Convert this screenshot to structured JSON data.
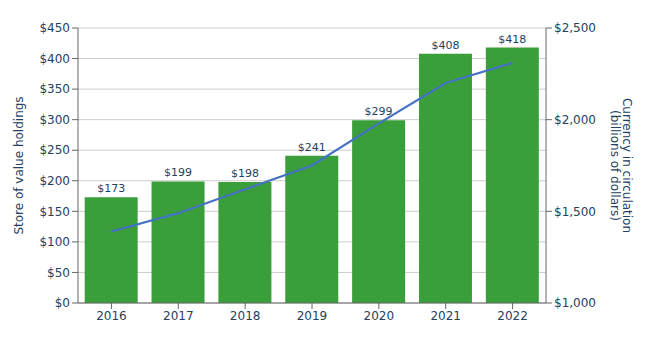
{
  "chart_data": {
    "type": "bar",
    "categories": [
      "2016",
      "2017",
      "2018",
      "2019",
      "2020",
      "2021",
      "2022"
    ],
    "ylabel": "Store of value holdings",
    "y2label": "Currency in circulation\n(billions of dollars)",
    "ylim": [
      0,
      450
    ],
    "yticks": [
      {
        "value": 0,
        "label": "$0"
      },
      {
        "value": 50,
        "label": "$50"
      },
      {
        "value": 100,
        "label": "$100"
      },
      {
        "value": 150,
        "label": "$150"
      },
      {
        "value": 200,
        "label": "$200"
      },
      {
        "value": 250,
        "label": "$250"
      },
      {
        "value": 300,
        "label": "$300"
      },
      {
        "value": 350,
        "label": "$350"
      },
      {
        "value": 400,
        "label": "$400"
      },
      {
        "value": 450,
        "label": "$450"
      }
    ],
    "y2lim": [
      1000,
      2500
    ],
    "y2ticks": [
      {
        "value": 1000,
        "label": "$1,000"
      },
      {
        "value": 1500,
        "label": "$1,500"
      },
      {
        "value": 2000,
        "label": "$2,000"
      },
      {
        "value": 2500,
        "label": "$2,500"
      }
    ],
    "grid": true,
    "series": [
      {
        "type": "bar",
        "color": "#3a9f3a",
        "values": [
          173,
          199,
          198,
          241,
          299,
          408,
          418
        ],
        "value_labels": [
          "$173",
          "$199",
          "$198",
          "$241",
          "$299",
          "$408",
          "$418"
        ],
        "data_labels": true
      },
      {
        "type": "line",
        "color": "#4472c4",
        "axis": "y2",
        "values": [
          1390,
          1490,
          1620,
          1750,
          1980,
          2200,
          2310
        ]
      }
    ]
  }
}
